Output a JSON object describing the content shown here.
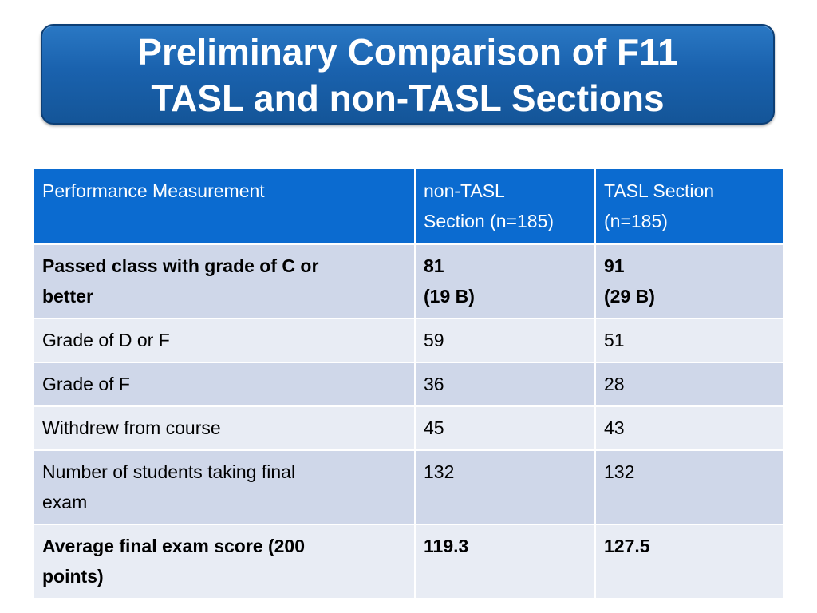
{
  "title": {
    "line1": "Preliminary Comparison of F11",
    "line2": "TASL and non-TASL Sections"
  },
  "table": {
    "headers": {
      "measure": "Performance Measurement",
      "non_tasl": [
        "non-TASL",
        "Section (n=185)"
      ],
      "tasl": [
        "TASL Section",
        "(n=185)"
      ]
    },
    "rows": [
      {
        "measure": [
          "Passed class with grade of C or",
          "better"
        ],
        "non_tasl": [
          "81",
          "(19 B)"
        ],
        "tasl": [
          "91",
          "(29 B)"
        ]
      },
      {
        "measure": [
          "Grade of D or F"
        ],
        "non_tasl": [
          "59"
        ],
        "tasl": [
          "51"
        ]
      },
      {
        "measure": [
          "Grade of F"
        ],
        "non_tasl": [
          "36"
        ],
        "tasl": [
          "28"
        ]
      },
      {
        "measure": [
          "Withdrew from course"
        ],
        "non_tasl": [
          "45"
        ],
        "tasl": [
          "43"
        ]
      },
      {
        "measure": [
          "Number of students taking final",
          "exam"
        ],
        "non_tasl": [
          "132"
        ],
        "tasl": [
          "132"
        ]
      },
      {
        "measure": [
          "Average final exam score (200",
          "points)"
        ],
        "non_tasl": [
          "119.3"
        ],
        "tasl": [
          "127.5"
        ]
      }
    ]
  },
  "colors": {
    "title_bg": "#1a62ae",
    "header_bg": "#0b6bd0",
    "row_dark": "#cfd7e9",
    "row_light": "#e8ecf4"
  }
}
